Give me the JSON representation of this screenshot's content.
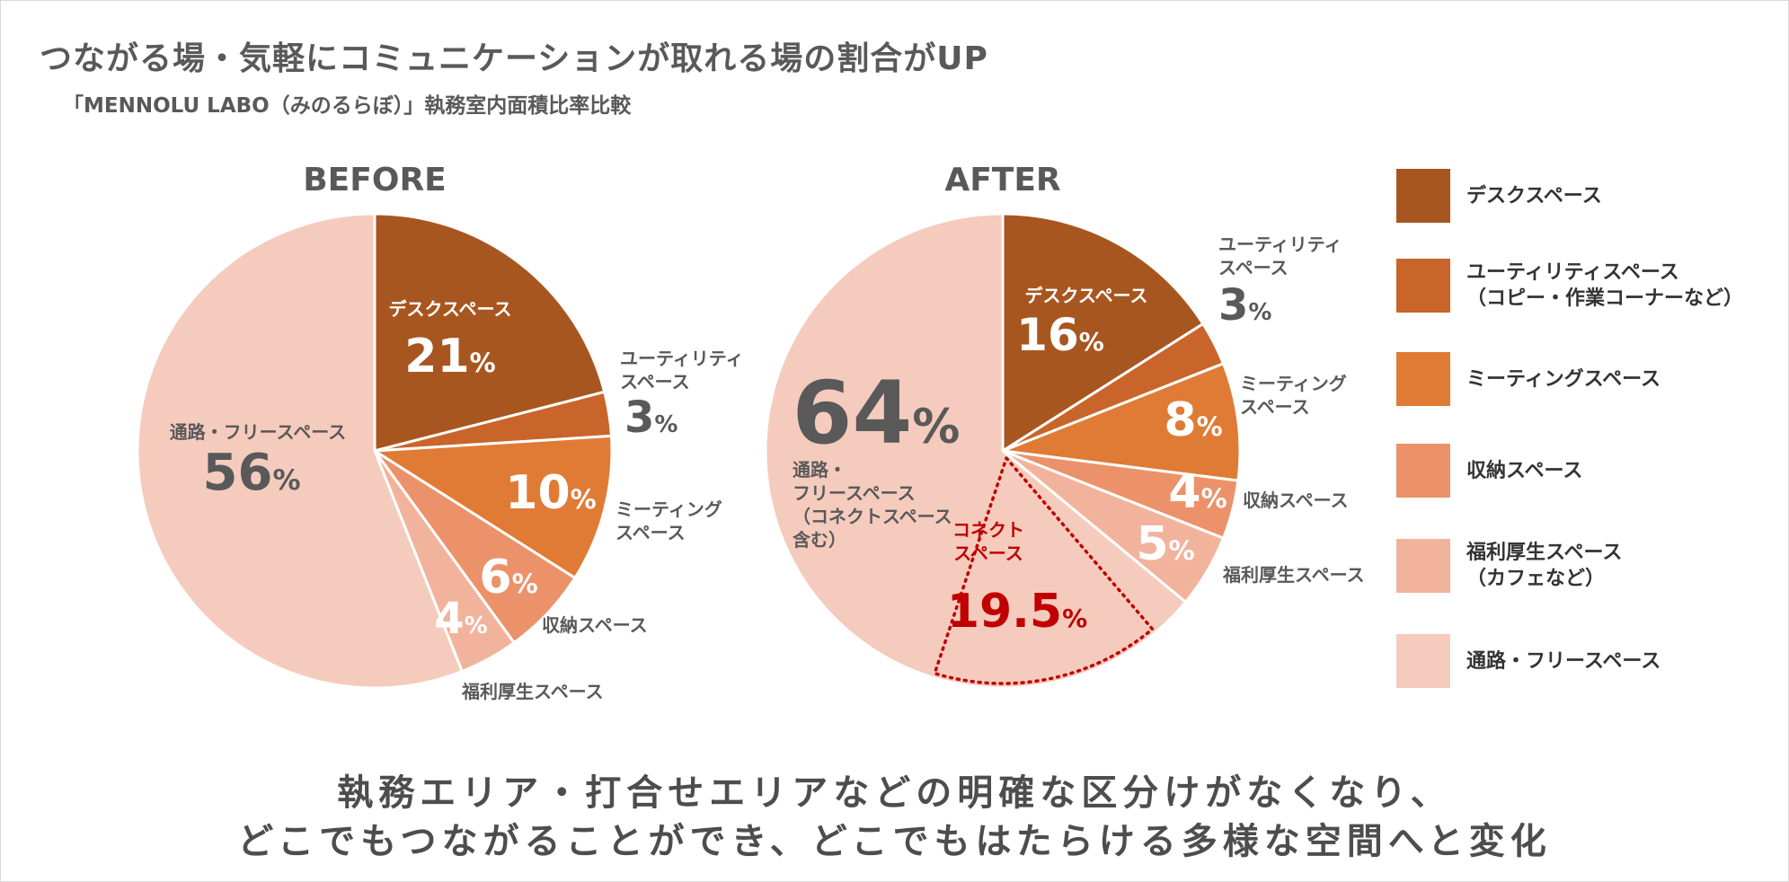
{
  "title": "つながる場・気軽にコミュニケーションが取れる場の割合がUP",
  "subtitle": "「MENNOLU LABO（みのるらぼ）」執務室内面積比率比較",
  "chart_data": [
    {
      "type": "pie",
      "title": "BEFORE",
      "categories": [
        "デスクスペース",
        "ユーティリティスペース",
        "ミーティングスペース",
        "収納スペース",
        "福利厚生スペース",
        "通路・フリースペース"
      ],
      "values": [
        21,
        3,
        10,
        6,
        4,
        56
      ],
      "slice_labels": [
        {
          "name": [
            "デスクスペース"
          ],
          "pct": "21"
        },
        {
          "name": [
            "ユーティリティ",
            "スペース"
          ],
          "pct": "3"
        },
        {
          "name": [
            "ミーティング",
            "スペース"
          ],
          "pct": "10"
        },
        {
          "name": [
            "収納スペース"
          ],
          "pct": "6"
        },
        {
          "name": [
            "福利厚生スペース"
          ],
          "pct": "4"
        },
        {
          "name": [
            "通路・フリースペース"
          ],
          "pct": "56"
        }
      ]
    },
    {
      "type": "pie",
      "title": "AFTER",
      "categories": [
        "デスクスペース",
        "ユーティリティスペース",
        "ミーティングスペース",
        "収納スペース",
        "福利厚生スペース",
        "通路・フリースペース"
      ],
      "values": [
        16,
        3,
        8,
        4,
        5,
        64
      ],
      "slice_labels": [
        {
          "name": [
            "デスクスペース"
          ],
          "pct": "16"
        },
        {
          "name": [
            "ユーティリティ",
            "スペース"
          ],
          "pct": "3"
        },
        {
          "name": [
            "ミーティング",
            "スペース"
          ],
          "pct": "8"
        },
        {
          "name": [
            "収納スペース"
          ],
          "pct": "4"
        },
        {
          "name": [
            "福利厚生スペース"
          ],
          "pct": "5"
        },
        {
          "name": [
            "通路・",
            "フリースペース",
            "（コネクトスペース",
            "含む）"
          ],
          "pct": "64"
        }
      ],
      "annotation": {
        "name": [
          "コネクト",
          "スペース"
        ],
        "pct": "19.5",
        "unit": "%"
      }
    }
  ],
  "percent_sign": "%",
  "colors": [
    "#a85620",
    "#c9652a",
    "#e07b35",
    "#eb926a",
    "#f2b39c",
    "#f5cbbd"
  ],
  "annotation_color": "#c00000",
  "legend": [
    {
      "label": [
        "デスクスペース"
      ]
    },
    {
      "label": [
        "ユーティリティスペース",
        "（コピー・作業コーナーなど）"
      ]
    },
    {
      "label": [
        "ミーティングスペース"
      ]
    },
    {
      "label": [
        "収納スペース"
      ]
    },
    {
      "label": [
        "福利厚生スペース",
        "（カフェなど）"
      ]
    },
    {
      "label": [
        "通路・フリースペース"
      ]
    }
  ],
  "footer": [
    "執務エリア・打合せエリアなどの明確な区分けがなくなり、",
    "どこでもつながることができ、どこでもはたらける多様な空間へと変化"
  ]
}
